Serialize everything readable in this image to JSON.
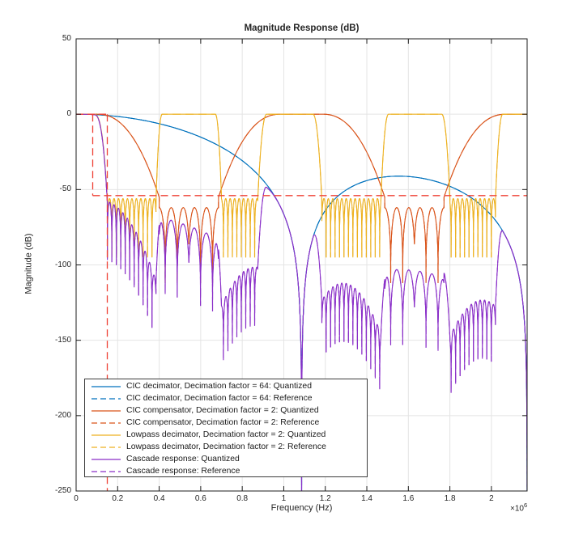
{
  "chart_data": {
    "type": "line",
    "title": "Magnitude Response (dB)",
    "xlabel": "Frequency (Hz)",
    "ylabel": "Magnitude (dB)",
    "x_scale_base": "×10",
    "x_scale_exp": "6",
    "xlim": [
      0,
      2172000
    ],
    "ylim": [
      -250,
      50
    ],
    "grid": true,
    "legend_position": "southwest",
    "xticks": {
      "values": [
        0,
        200000,
        400000,
        600000,
        800000,
        1000000,
        1200000,
        1400000,
        1600000,
        1800000,
        2000000
      ],
      "labels": [
        "0",
        "0.2",
        "0.4",
        "0.6",
        "0.8",
        "1",
        "1.2",
        "1.4",
        "1.6",
        "1.8",
        "2"
      ]
    },
    "yticks": {
      "values": [
        50,
        0,
        -50,
        -100,
        -150,
        -200,
        -250
      ],
      "labels": [
        "50",
        "0",
        "-50",
        "-100",
        "-150",
        "-200",
        "-250"
      ]
    },
    "colors": {
      "blue": "#0072BD",
      "orange": "#D95319",
      "yellow": "#EDB120",
      "purple": "#8A2FC8",
      "mask_red": "#EF4135",
      "grid": "#E4E4E4",
      "frame": "#1C1C1C"
    },
    "series": [
      {
        "id": "cic_q",
        "label": "CIC decimator, Decimation factor = 64: Quantized",
        "color": "#0072BD",
        "dash": false,
        "gen": {
          "type": "cic",
          "null_hz": 1086000,
          "gain_db_per_log": 62
        }
      },
      {
        "id": "cic_r",
        "label": "CIC decimator, Decimation factor = 64: Reference",
        "color": "#0072BD",
        "dash": true,
        "gen": {
          "type": "cic",
          "null_hz": 1086000,
          "gain_db_per_log": 62
        }
      },
      {
        "id": "comp_q",
        "label": "CIC compensator, Decimation factor = 2: Quantized",
        "color": "#D95319",
        "dash": false,
        "gen": {
          "type": "periodic_comp",
          "centers": [
            0,
            1086000,
            2172000
          ],
          "flat_halfwidth": 100000,
          "transition_end": 400000,
          "transition_db": -55,
          "transition_pow": 2.3,
          "lobe_width": 58000,
          "lobe_top": -62,
          "lobe_depth": 50,
          "lobe_sin_pow": 0.3
        }
      },
      {
        "id": "comp_r",
        "label": "CIC compensator, Decimation factor = 2: Reference",
        "color": "#D95319",
        "dash": true,
        "gen": {
          "type": "periodic_comp",
          "centers": [
            0,
            1086000,
            2172000
          ],
          "flat_halfwidth": 100000,
          "transition_end": 400000,
          "transition_db": -55,
          "transition_pow": 2.3,
          "lobe_width": 58000,
          "lobe_top": -62,
          "lobe_depth": 50,
          "lobe_sin_pow": 0.3
        }
      },
      {
        "id": "lp_q",
        "label": "Lowpass decimator, Decimation factor = 2: Quantized",
        "color": "#EDB120",
        "dash": false,
        "gen": {
          "type": "multiband",
          "stop_top": -56,
          "stop_depth": 39,
          "tooth_width": 21500,
          "tooth_sin_pow": 0.25,
          "bands": [
            {
              "flat": [
                0,
                85000
              ],
              "tw_left": 0,
              "tw_right": 65000,
              "pow": 2.8
            },
            {
              "flat": [
                415000,
                670000
              ],
              "tw_left": 30000,
              "tw_right": 30000,
              "pow": 2.2
            },
            {
              "flat": [
                918000,
                1140000
              ],
              "tw_left": 43000,
              "tw_right": 43000,
              "pow": 2.2
            },
            {
              "flat": [
                1505000,
                1760000
              ],
              "tw_left": 37000,
              "tw_right": 40000,
              "pow": 2.2
            },
            {
              "flat": [
                2055000,
                2172000
              ],
              "tw_left": 35000,
              "tw_right": 0,
              "pow": 2.2
            }
          ]
        }
      },
      {
        "id": "lp_r",
        "label": "Lowpass decimator, Decimation factor = 2: Reference",
        "color": "#EDB120",
        "dash": true,
        "gen": {
          "type": "multiband",
          "stop_top": -56,
          "stop_depth": 39,
          "tooth_width": 21500,
          "tooth_sin_pow": 0.25,
          "bands": [
            {
              "flat": [
                0,
                85000
              ],
              "tw_left": 0,
              "tw_right": 65000,
              "pow": 2.8
            },
            {
              "flat": [
                415000,
                670000
              ],
              "tw_left": 30000,
              "tw_right": 30000,
              "pow": 2.2
            },
            {
              "flat": [
                918000,
                1140000
              ],
              "tw_left": 43000,
              "tw_right": 43000,
              "pow": 2.2
            },
            {
              "flat": [
                1505000,
                1760000
              ],
              "tw_left": 37000,
              "tw_right": 40000,
              "pow": 2.2
            },
            {
              "flat": [
                2055000,
                2172000
              ],
              "tw_left": 35000,
              "tw_right": 0,
              "pow": 2.2
            }
          ]
        }
      },
      {
        "id": "casc_q",
        "label": "Cascade response: Quantized",
        "color": "#8A2FC8",
        "dash": false,
        "gen": {
          "type": "sum",
          "of": [
            "cic_q",
            "comp_q",
            "lp_q"
          ]
        }
      },
      {
        "id": "casc_r",
        "label": "Cascade response: Reference",
        "color": "#8A2FC8",
        "dash": true,
        "gen": {
          "type": "sum",
          "of": [
            "cic_q",
            "comp_q",
            "lp_q"
          ]
        }
      }
    ],
    "mask": {
      "color": "#EF4135",
      "dashed": true,
      "passband_edge_hz": 80000,
      "stopband_edge_hz": 150000,
      "stopband_level_db": -54,
      "segments": [
        {
          "type": "h",
          "db": 0,
          "from": 0,
          "to": 150000
        },
        {
          "type": "v",
          "x": 80000,
          "from_db": 0,
          "to_db": -54
        },
        {
          "type": "h",
          "db": -54,
          "from": 80000,
          "to": 2172000
        },
        {
          "type": "v",
          "x": 150000,
          "from_db": 0,
          "to_db": -250
        }
      ]
    }
  }
}
